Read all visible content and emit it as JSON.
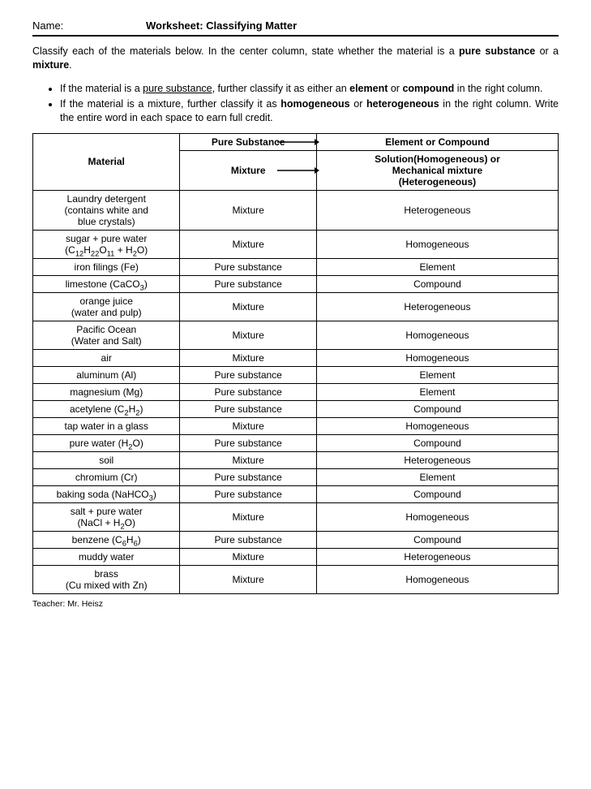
{
  "header": {
    "name_label": "Name:",
    "title": "Worksheet: Classifying Matter"
  },
  "intro": {
    "lead_before": "Classify each of the materials below.  In the center column, state whether the material is a ",
    "bold1": "pure substance",
    "mid1": " or a ",
    "bold2": "mixture",
    "after": ".",
    "bullet1_a": "If the material is a ",
    "bullet1_u": "pure substance",
    "bullet1_b": ", further classify it as either an ",
    "bullet1_bold1": "element",
    "bullet1_c": " or ",
    "bullet1_bold2": "compound",
    "bullet1_d": " in the right column.",
    "bullet2_a": "If the material is a mixture, further classify it as ",
    "bullet2_bold1": "homogeneous",
    "bullet2_b": " or ",
    "bullet2_bold2": "heterogeneous",
    "bullet2_c": " in the right column. Write the entire word in each space to earn full credit."
  },
  "table": {
    "head": {
      "material": "Material",
      "pure_substance": "Pure Substance",
      "mixture": "Mixture",
      "element_or_compound": "Element or Compound",
      "sol_line1": "Solution(Homogeneous) or",
      "sol_line2": "Mechanical mixture",
      "sol_line3": "(Heterogeneous)"
    },
    "rows": [
      {
        "material_html": "Laundry detergent<br>(contains white and<br>blue crystals)",
        "col2": "Mixture",
        "col3": "Heterogeneous"
      },
      {
        "material_html": "sugar + pure water<br>(C<span class=\"sub\">12</span>H<span class=\"sub\">22</span>O<span class=\"sub\">11</span> + H<span class=\"sub\">2</span>O)",
        "col2": "Mixture",
        "col3": "Homogeneous"
      },
      {
        "material_html": "iron filings (Fe)",
        "col2": "Pure substance",
        "col3": "Element"
      },
      {
        "material_html": "limestone (CaCO<span class=\"sub\">3</span>)",
        "col2": "Pure substance",
        "col3": "Compound"
      },
      {
        "material_html": "orange juice<br>(water and pulp)",
        "col2": "Mixture",
        "col3": "Heterogeneous"
      },
      {
        "material_html": "Pacific Ocean<br>(Water and Salt)",
        "col2": "Mixture",
        "col3": "Homogeneous"
      },
      {
        "material_html": "air",
        "col2": "Mixture",
        "col3": "Homogeneous"
      },
      {
        "material_html": "aluminum (Al)",
        "col2": "Pure substance",
        "col3": "Element"
      },
      {
        "material_html": "magnesium (Mg)",
        "col2": "Pure substance",
        "col3": "Element"
      },
      {
        "material_html": "acetylene (C<span class=\"sub\">2</span>H<span class=\"sub\">2</span>)",
        "col2": "Pure substance",
        "col3": "Compound"
      },
      {
        "material_html": "tap water in a glass",
        "col2": "Mixture",
        "col3": "Homogeneous"
      },
      {
        "material_html": "pure water (H<span class=\"sub\">2</span>O)",
        "col2": "Pure substance",
        "col3": "Compound"
      },
      {
        "material_html": "soil",
        "col2": "Mixture",
        "col3": "Heterogeneous"
      },
      {
        "material_html": "chromium (Cr)",
        "col2": "Pure substance",
        "col3": "Element"
      },
      {
        "material_html": "baking soda (NaHCO<span class=\"sub\">3</span>)",
        "col2": "Pure substance",
        "col3": "Compound"
      },
      {
        "material_html": "salt + pure water<br>(NaCl + H<span class=\"sub\">2</span>O)",
        "col2": "Mixture",
        "col3": "Homogeneous"
      },
      {
        "material_html": "benzene (C<span class=\"sub\">6</span>H<span class=\"sub\">6</span>)",
        "col2": "Pure substance",
        "col3": "Compound"
      },
      {
        "material_html": "muddy water",
        "col2": "Mixture",
        "col3": "Heterogeneous"
      },
      {
        "material_html": "brass<br>(Cu mixed with Zn)",
        "col2": "Mixture",
        "col3": "Homogeneous"
      }
    ]
  },
  "footer": {
    "teacher": "Teacher: Mr. Heisz"
  },
  "style": {
    "arrow_color": "#000000"
  }
}
